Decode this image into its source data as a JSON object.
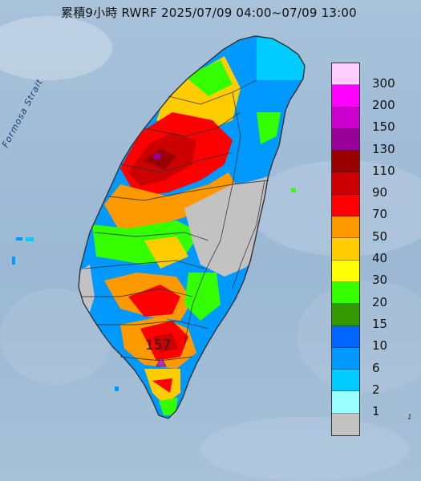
{
  "map": {
    "title": "累積9小時 RWRF 2025/07/09 04:00~07/09 13:00",
    "strait_label": "Formosa Strait",
    "max_value_label": "157",
    "edge_label": "1",
    "colors": {
      "sea": "#9fbad6",
      "no_rain": "#c2c2c2",
      "outline": "#333333",
      "max_marker": "#cc22cc"
    }
  },
  "legend": {
    "items": [
      {
        "label": "300",
        "color": "#ffccff"
      },
      {
        "label": "200",
        "color": "#ff00ff"
      },
      {
        "label": "150",
        "color": "#cc00cc"
      },
      {
        "label": "130",
        "color": "#990099"
      },
      {
        "label": "110",
        "color": "#990000"
      },
      {
        "label": "90",
        "color": "#cc0000"
      },
      {
        "label": "70",
        "color": "#ff0000"
      },
      {
        "label": "50",
        "color": "#ff9900"
      },
      {
        "label": "40",
        "color": "#ffcc00"
      },
      {
        "label": "30",
        "color": "#ffff00"
      },
      {
        "label": "20",
        "color": "#33ff00"
      },
      {
        "label": "15",
        "color": "#339900"
      },
      {
        "label": "10",
        "color": "#0066ff"
      },
      {
        "label": "6",
        "color": "#0099ff"
      },
      {
        "label": "2",
        "color": "#00ccff"
      },
      {
        "label": "1",
        "color": "#99ffff"
      },
      {
        "label": "",
        "color": "#c2c2c2"
      }
    ]
  }
}
